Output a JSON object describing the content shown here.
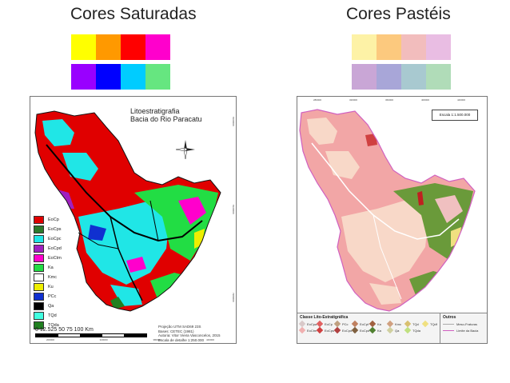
{
  "headings": {
    "saturated": "Cores Saturadas",
    "pastel": "Cores Pastéis"
  },
  "palettes": {
    "saturated": [
      "#ffff00",
      "#ff9900",
      "#ff0000",
      "#ff00cc",
      "#9900ff",
      "#0000ff",
      "#00ccff",
      "#66e680"
    ],
    "pastel": [
      "#fdf2a6",
      "#fcc97e",
      "#f2bdbd",
      "#e9bde3",
      "#c9a6d6",
      "#a8a6d8",
      "#a8c9d0",
      "#b0dcb8"
    ]
  },
  "map_left": {
    "title": "Litoestratigrafia",
    "subtitle": "Bacia do Rio Paracatu",
    "legend": [
      {
        "code": "EoCp",
        "color": "#e00000"
      },
      {
        "code": "EoCps",
        "color": "#2c7a2c"
      },
      {
        "code": "EoCpc",
        "color": "#20e6e6"
      },
      {
        "code": "EoCpd",
        "color": "#a020c0"
      },
      {
        "code": "EoCtm",
        "color": "#ff00cc"
      },
      {
        "code": "Ka",
        "color": "#22dd44"
      },
      {
        "code": "Kmc",
        "color": "#ffffff"
      },
      {
        "code": "Ku",
        "color": "#eeee00"
      },
      {
        "code": "PCc",
        "color": "#1030d0"
      },
      {
        "code": "Qa",
        "color": "#000000"
      },
      {
        "code": "TQd",
        "color": "#40ffe0"
      },
      {
        "code": "TQda",
        "color": "#208020"
      }
    ],
    "scale_labels": "0 12.525   50   75   100",
    "scale_unit": "Km",
    "credits": [
      "Projeção UTM SAD69 23S",
      "Bases: CETEC (1981)",
      "Autoria: Vitor Vieira Vasconcelos, 2015",
      "Escala de detalhe 1:250.000"
    ],
    "bottom_ticks": [
      "200000",
      "320000",
      "380000",
      "440000"
    ],
    "right_ticks": [
      "8100000",
      "8160000",
      "7980000"
    ]
  },
  "map_right": {
    "escala": "Escala 1:1.500.000",
    "legend_title": "Classe Lito-Estratigráfica",
    "legend": [
      {
        "code": "EoCpa",
        "color": "#d9c9c9"
      },
      {
        "code": "EoCp",
        "color": "#e06060"
      },
      {
        "code": "PCc",
        "color": "#c0a080"
      },
      {
        "code": "EoCpf",
        "color": "#c08060"
      },
      {
        "code": "Ka",
        "color": "#a06040"
      },
      {
        "code": "Kmc",
        "color": "#d0a080"
      },
      {
        "code": "TQd",
        "color": "#d8c070"
      },
      {
        "code": "TQdf",
        "color": "#f0e080"
      },
      {
        "code": "EoCtm",
        "color": "#f0b0b0"
      },
      {
        "code": "EoCps",
        "color": "#d04040"
      },
      {
        "code": "EoCpd",
        "color": "#b04040"
      },
      {
        "code": "EoCpd",
        "color": "#806040"
      },
      {
        "code": "Ka",
        "color": "#508030"
      },
      {
        "code": "Qa",
        "color": "#d0d0a0"
      },
      {
        "code": "TQda",
        "color": "#c0e080"
      }
    ],
    "outros_title": "Outros",
    "outros": [
      {
        "label": "Meso-Fraturas",
        "color": "#aaaaaa"
      },
      {
        "label": "Limite da Bacia",
        "color": "#d060c0"
      }
    ],
    "top_ticks": [
      "280000",
      "320000",
      "360000",
      "400000",
      "440000"
    ],
    "bottom_ticks": [
      "280000",
      "320000",
      "360000",
      "400000",
      "440000"
    ]
  }
}
